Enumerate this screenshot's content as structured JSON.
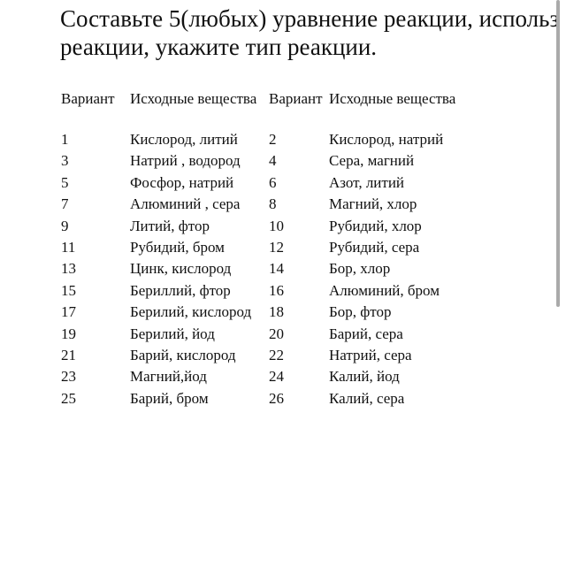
{
  "title": {
    "line1": "Составьте 5(любых) уравнение реакции, использ",
    "line2": "реакции, укажите тип реакции."
  },
  "table": {
    "headers": [
      "Вариант",
      "Исходные вещества",
      "Вариант",
      "Исходные вещества"
    ],
    "rows": [
      [
        "1",
        "Кислород, литий",
        "2",
        "Кислород, натрий"
      ],
      [
        "3",
        "Натрий , водород",
        "4",
        "Сера, магний"
      ],
      [
        "5",
        "Фосфор, натрий",
        "6",
        "Азот, литий"
      ],
      [
        "7",
        "Алюминий , сера",
        "8",
        "Магний, хлор"
      ],
      [
        "9",
        "Литий, фтор",
        "10",
        "Рубидий, хлор"
      ],
      [
        "11",
        "Рубидий, бром",
        "12",
        "Рубидий, сера"
      ],
      [
        "13",
        "Цинк, кислород",
        "14",
        "Бор, хлор"
      ],
      [
        "15",
        "Бериллий, фтор",
        "16",
        "Алюминий, бром"
      ],
      [
        "17",
        "Берилий, кислород",
        "18",
        "Бор, фтор"
      ],
      [
        "19",
        "Берилий, йод",
        "20",
        "Барий, сера"
      ],
      [
        "21",
        "Барий, кислород",
        "22",
        "Натрий, сера"
      ],
      [
        "23",
        "Магний,йод",
        "24",
        "Калий, йод"
      ],
      [
        "25",
        "Барий, бром",
        "26",
        "Калий, сера"
      ]
    ]
  }
}
